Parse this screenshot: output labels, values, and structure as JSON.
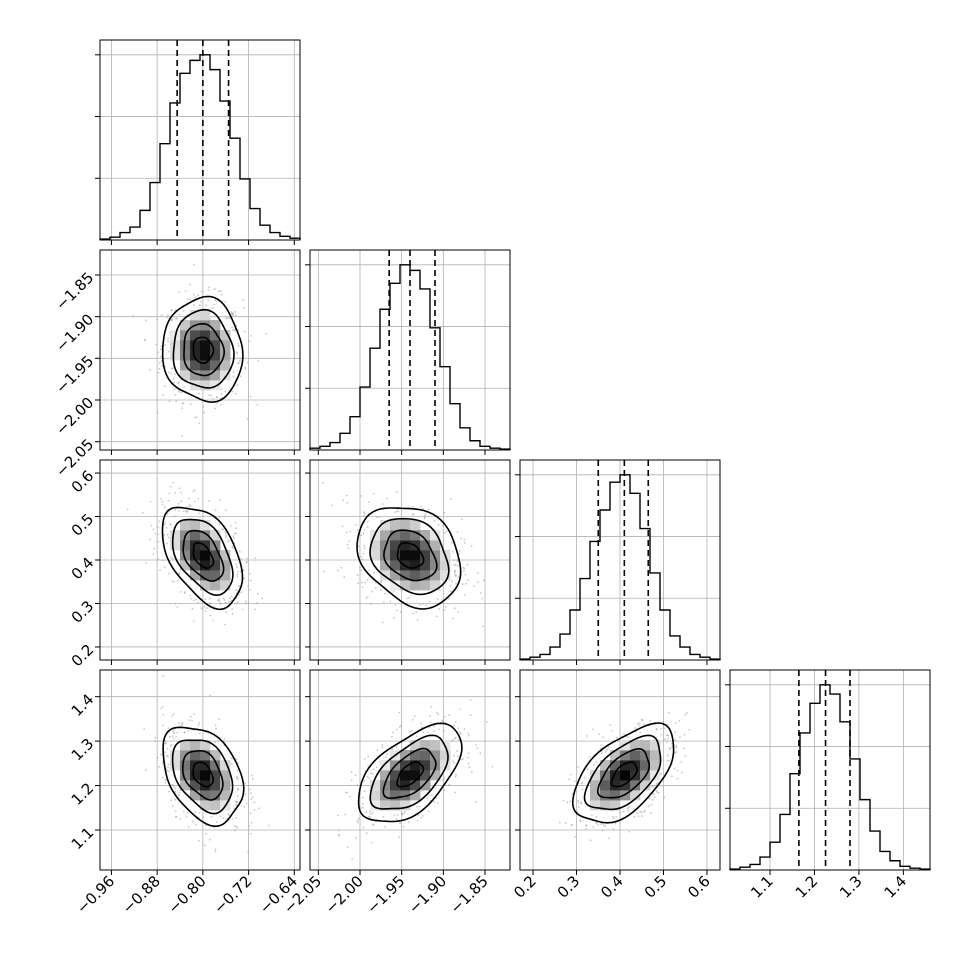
{
  "chart_data": {
    "type": "corner",
    "grid": true,
    "parameters": [
      {
        "index": 0,
        "range": [
          -0.98,
          -0.63
        ],
        "ticks": [
          -0.96,
          -0.88,
          -0.8,
          -0.72,
          -0.64
        ],
        "tick_labels": [
          "−0.96",
          "−0.88",
          "−0.80",
          "−0.72",
          "−0.64"
        ],
        "mean": -0.8,
        "sd": 0.035,
        "quantiles": [
          -0.845,
          -0.8,
          -0.755
        ]
      },
      {
        "index": 1,
        "range": [
          -2.06,
          -1.82
        ],
        "ticks": [
          -2.05,
          -2.0,
          -1.95,
          -1.9,
          -1.85
        ],
        "tick_labels": [
          "−2.05",
          "−2.00",
          "−1.95",
          "−1.90",
          "−1.85"
        ],
        "mean": -1.94,
        "sd": 0.031,
        "quantiles": [
          -1.965,
          -1.94,
          -1.91
        ]
      },
      {
        "index": 2,
        "range": [
          0.17,
          0.63
        ],
        "ticks": [
          0.2,
          0.3,
          0.4,
          0.5,
          0.6
        ],
        "tick_labels": [
          "0.2",
          "0.3",
          "0.4",
          "0.5",
          "0.6"
        ],
        "mean": 0.41,
        "sd": 0.058,
        "quantiles": [
          0.35,
          0.41,
          0.465
        ]
      },
      {
        "index": 3,
        "range": [
          1.01,
          1.46
        ],
        "ticks": [
          1.1,
          1.2,
          1.3,
          1.4
        ],
        "tick_labels": [
          "1.1",
          "1.2",
          "1.3",
          "1.4"
        ],
        "mean": 1.225,
        "sd": 0.055,
        "quantiles": [
          1.165,
          1.225,
          1.28
        ]
      }
    ],
    "histograms": [
      {
        "param": 0,
        "bins": 20,
        "values": [
          0.005,
          0.015,
          0.04,
          0.07,
          0.16,
          0.31,
          0.52,
          0.74,
          0.9,
          0.97,
          1.0,
          0.92,
          0.75,
          0.55,
          0.33,
          0.17,
          0.08,
          0.04,
          0.02,
          0.01
        ]
      },
      {
        "param": 1,
        "bins": 20,
        "values": [
          0.01,
          0.02,
          0.04,
          0.09,
          0.18,
          0.34,
          0.55,
          0.76,
          0.9,
          1.0,
          0.97,
          0.87,
          0.66,
          0.45,
          0.25,
          0.12,
          0.05,
          0.02,
          0.01,
          0.005
        ]
      },
      {
        "param": 2,
        "bins": 20,
        "values": [
          0.005,
          0.015,
          0.03,
          0.07,
          0.14,
          0.27,
          0.44,
          0.64,
          0.81,
          0.96,
          1.0,
          0.9,
          0.71,
          0.47,
          0.27,
          0.13,
          0.07,
          0.03,
          0.015,
          0.005
        ]
      },
      {
        "param": 3,
        "bins": 20,
        "values": [
          0.005,
          0.015,
          0.03,
          0.07,
          0.15,
          0.3,
          0.52,
          0.74,
          0.9,
          1.0,
          0.95,
          0.8,
          0.6,
          0.38,
          0.21,
          0.1,
          0.05,
          0.02,
          0.01,
          0.005
        ]
      }
    ],
    "correlations": [
      {
        "row": 1,
        "col": 0,
        "rho": -0.05
      },
      {
        "row": 2,
        "col": 0,
        "rho": -0.45
      },
      {
        "row": 2,
        "col": 1,
        "rho": -0.25
      },
      {
        "row": 3,
        "col": 0,
        "rho": -0.35
      },
      {
        "row": 3,
        "col": 1,
        "rho": 0.55
      },
      {
        "row": 3,
        "col": 2,
        "rho": 0.55
      }
    ],
    "contour_levels_sigma": [
      0.5,
      1.0,
      1.5,
      2.0
    ]
  }
}
